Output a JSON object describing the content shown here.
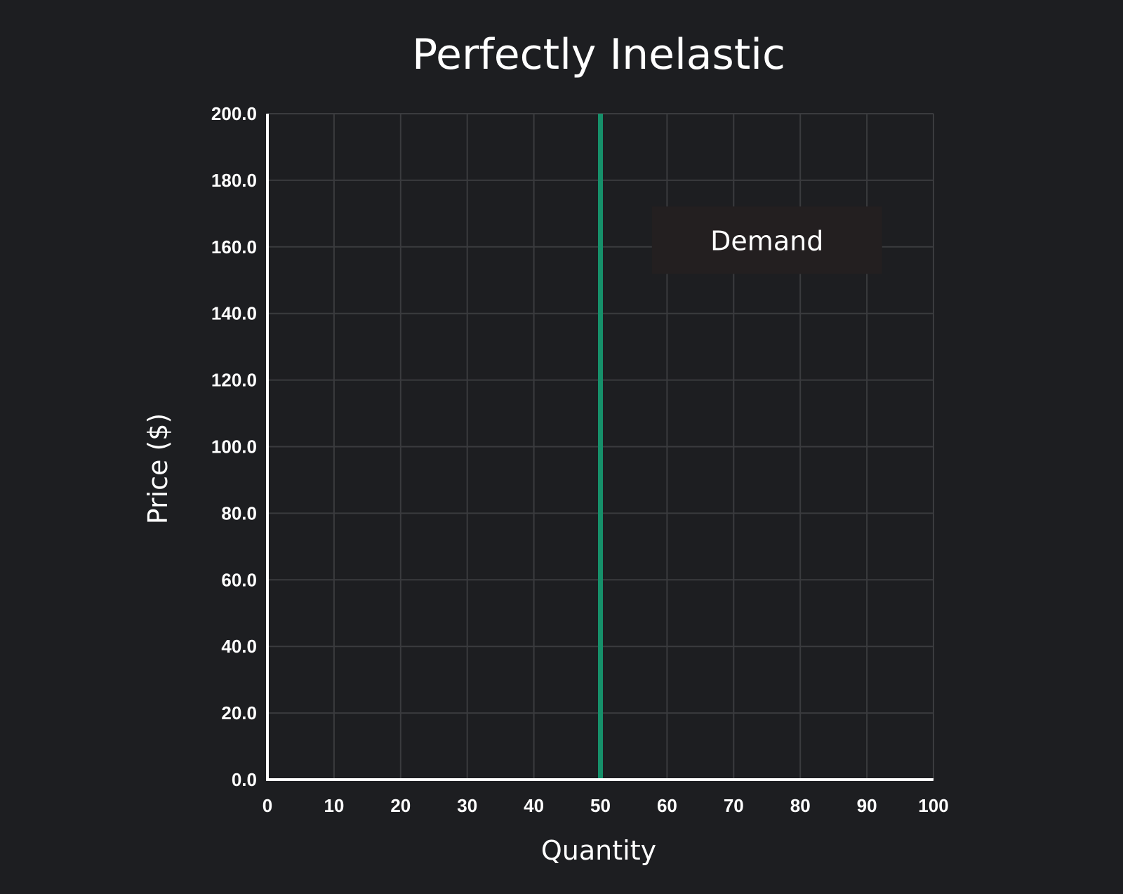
{
  "chart_data": {
    "type": "line",
    "title": "Perfectly Inelastic",
    "xlabel": "Quantity",
    "ylabel": "Price ($)",
    "xlim": [
      0,
      100
    ],
    "ylim": [
      0,
      200
    ],
    "x_ticks": [
      "0",
      "10",
      "20",
      "30",
      "40",
      "50",
      "60",
      "70",
      "80",
      "90",
      "100"
    ],
    "y_ticks": [
      "0.0",
      "20.0",
      "40.0",
      "60.0",
      "80.0",
      "100.0",
      "120.0",
      "140.0",
      "160.0",
      "180.0",
      "200.0"
    ],
    "grid": true,
    "series": [
      {
        "name": "Demand",
        "color": "#16906a",
        "points": [
          {
            "x": 50,
            "y": 0
          },
          {
            "x": 50,
            "y": 200
          }
        ]
      }
    ],
    "annotations": [
      {
        "text": "Demand",
        "x": 75,
        "y": 162
      }
    ],
    "colors": {
      "background": "#1d1e21",
      "grid": "#3a3b3e",
      "axis": "#ffffff",
      "text": "#ffffff",
      "label_box": "#231f20"
    }
  }
}
